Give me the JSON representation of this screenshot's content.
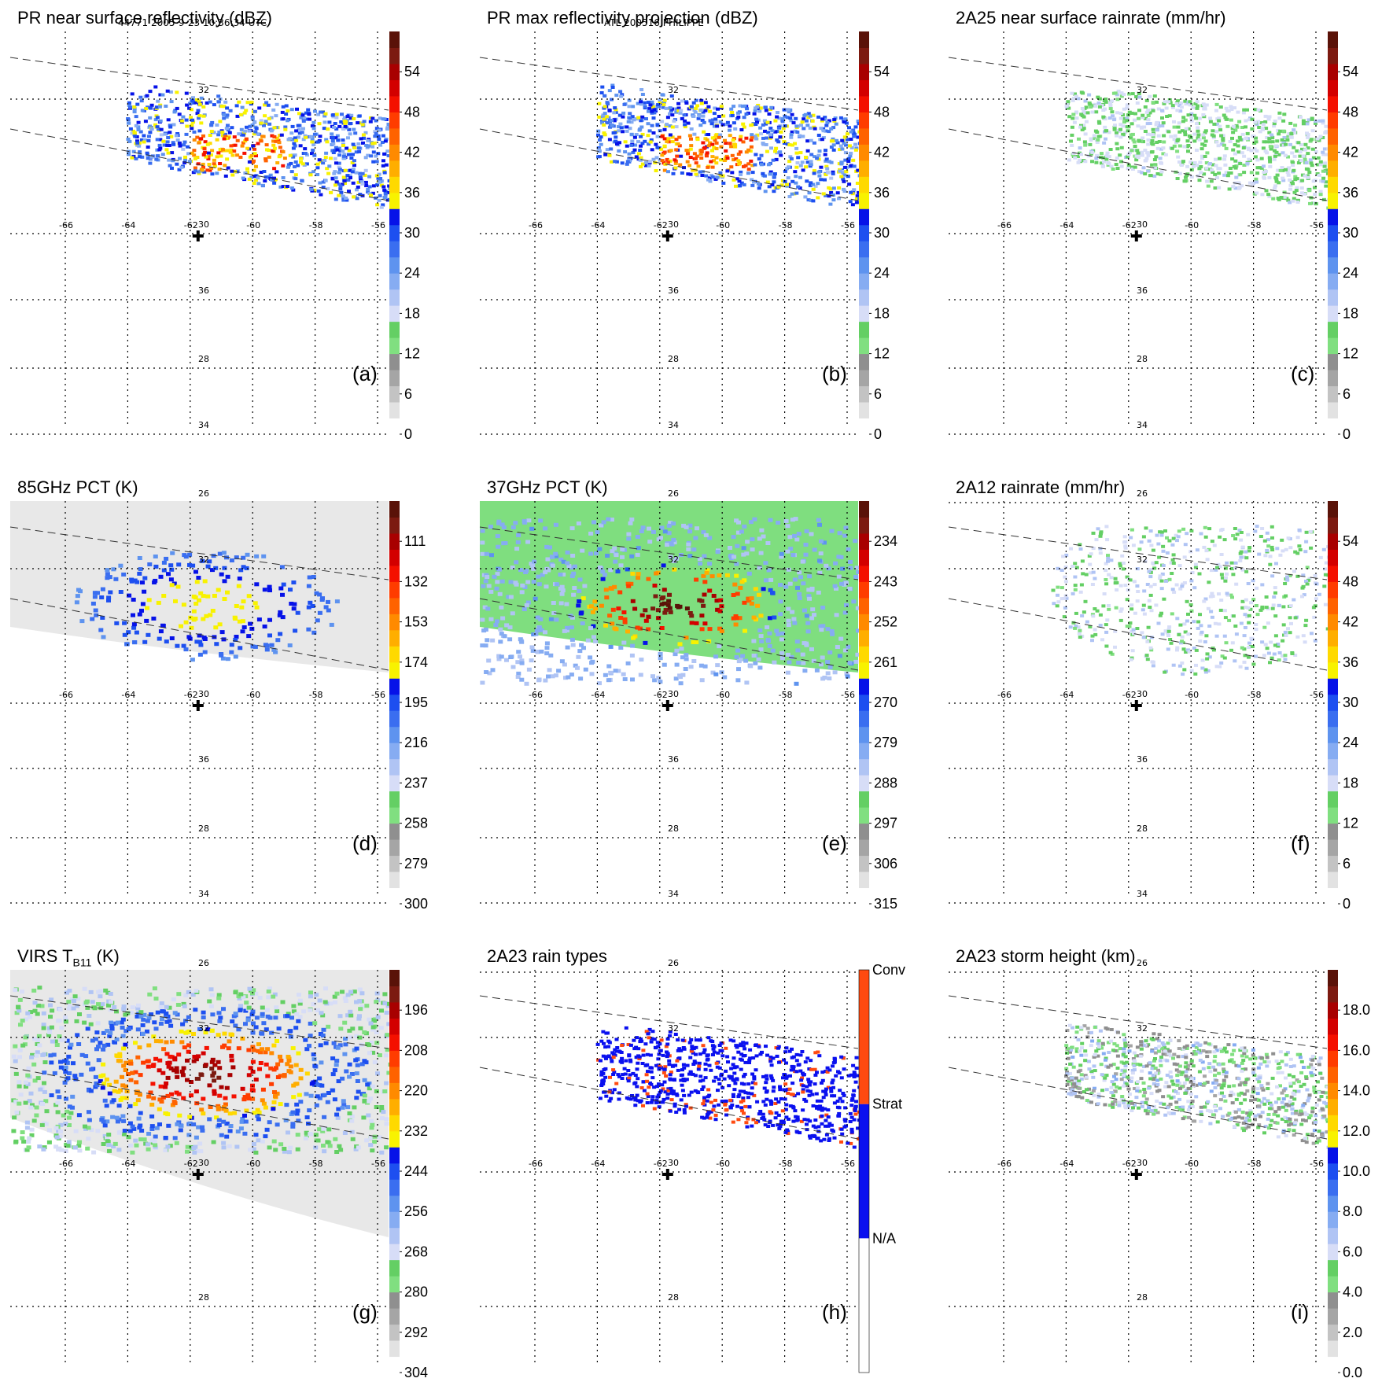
{
  "header": {
    "left": "44771 2005-9-23 10:36:34 UTC",
    "center": "ATL 200516 PHILIPPE"
  },
  "map": {
    "lon_ticks": [
      "-66",
      "-64",
      "-62",
      "-60",
      "-58",
      "-56"
    ],
    "lat_ticks": [
      "36",
      "34",
      "32",
      "30",
      "28",
      "26"
    ],
    "storm_center_icon": "plus-marker-icon"
  },
  "chart_data": [
    {
      "type": "heatmap",
      "id": "a",
      "title": "PR near surface reflectivity (dBZ)",
      "label": "(a)",
      "colorbar_ticks": [
        "0",
        "6",
        "12",
        "18",
        "24",
        "30",
        "36",
        "42",
        "48",
        "54"
      ],
      "range": [
        0,
        60
      ]
    },
    {
      "type": "heatmap",
      "id": "b",
      "title": "PR max reflectivity projection (dBZ)",
      "label": "(b)",
      "colorbar_ticks": [
        "0",
        "6",
        "12",
        "18",
        "24",
        "30",
        "36",
        "42",
        "48",
        "54"
      ],
      "range": [
        0,
        60
      ]
    },
    {
      "type": "heatmap",
      "id": "c",
      "title": "2A25 near surface rainrate (mm/hr)",
      "label": "(c)",
      "colorbar_ticks": [
        "0",
        "6",
        "12",
        "18",
        "24",
        "30",
        "36",
        "42",
        "48",
        "54"
      ],
      "range": [
        0,
        60
      ]
    },
    {
      "type": "heatmap",
      "id": "d",
      "title": "85GHz PCT (K)",
      "label": "(d)",
      "colorbar_ticks": [
        "300",
        "279",
        "258",
        "237",
        "216",
        "195",
        "174",
        "153",
        "132",
        "111"
      ],
      "range": [
        300,
        90
      ]
    },
    {
      "type": "heatmap",
      "id": "e",
      "title": "37GHz PCT (K)",
      "label": "(e)",
      "colorbar_ticks": [
        "315",
        "306",
        "297",
        "288",
        "279",
        "270",
        "261",
        "252",
        "243",
        "234"
      ],
      "range": [
        315,
        225
      ]
    },
    {
      "type": "heatmap",
      "id": "f",
      "title": "2A12 rainrate (mm/hr)",
      "label": "(f)",
      "colorbar_ticks": [
        "0",
        "6",
        "12",
        "18",
        "24",
        "30",
        "36",
        "42",
        "48",
        "54"
      ],
      "range": [
        0,
        60
      ]
    },
    {
      "type": "heatmap",
      "id": "g",
      "title_main": "VIRS T",
      "title_sub": "B11",
      "title_unit": " (K)",
      "label": "(g)",
      "colorbar_ticks": [
        "304",
        "292",
        "280",
        "268",
        "256",
        "244",
        "232",
        "220",
        "208",
        "196"
      ],
      "range": [
        304,
        184
      ]
    },
    {
      "type": "heatmap",
      "id": "h",
      "title": "2A23 rain types",
      "label": "(h)",
      "categories": [
        "N/A",
        "Strat",
        "Conv"
      ]
    },
    {
      "type": "heatmap",
      "id": "i",
      "title": "2A23 storm height (km)",
      "label": "(i)",
      "colorbar_ticks": [
        "0.0",
        "2.0",
        "4.0",
        "6.0",
        "8.0",
        "10.0",
        "12.0",
        "14.0",
        "16.0",
        "18.0"
      ],
      "range": [
        0,
        20
      ]
    }
  ],
  "palette": {
    "continuous": [
      "#ffffff",
      "#e2e2e2",
      "#c3c3c3",
      "#a5a5a5",
      "#8f8f8f",
      "#80df80",
      "#64cf64",
      "#d7ddf7",
      "#b0c4f4",
      "#86acf2",
      "#5e93ef",
      "#3a6ef0",
      "#1d4ff0",
      "#0612e8",
      "#f8f200",
      "#ffd900",
      "#ffae00",
      "#ff8a00",
      "#ff6200",
      "#ff3c00",
      "#f41000",
      "#d30000",
      "#a80000",
      "#7c1a10",
      "#5a1208"
    ],
    "conv": "#ff4a10",
    "strat": "#0a10ef",
    "na": "#ffffff"
  }
}
